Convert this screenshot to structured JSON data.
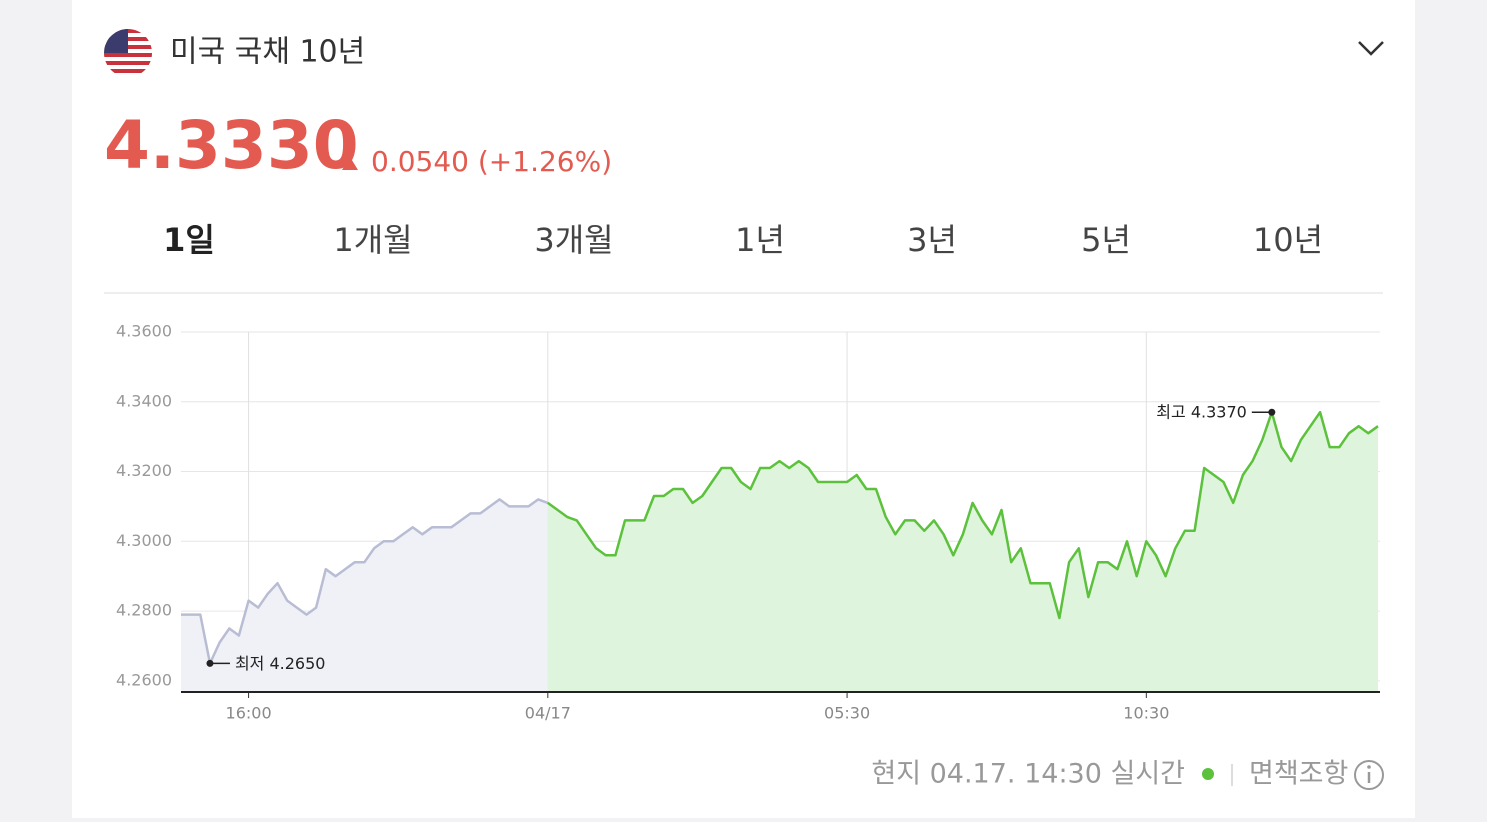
{
  "header": {
    "title": "미국 국채 10년",
    "price": "4.3330",
    "change": "0.0540 (+1.26%)"
  },
  "tabs": {
    "items": [
      "1일",
      "1개월",
      "3개월",
      "1년",
      "3년",
      "5년",
      "10년"
    ],
    "selected": 0
  },
  "chart_data": {
    "type": "line",
    "categories": [
      null,
      null,
      null,
      null,
      null,
      null,
      null,
      "16:00",
      null,
      null,
      null,
      null,
      null,
      null,
      null,
      null,
      null,
      null,
      null,
      null,
      null,
      null,
      null,
      null,
      null,
      null,
      null,
      null,
      null,
      null,
      null,
      null,
      null,
      null,
      null,
      null,
      null,
      null,
      "04/17",
      null,
      null,
      null,
      null,
      null,
      null,
      null,
      null,
      null,
      null,
      null,
      null,
      null,
      null,
      null,
      null,
      null,
      null,
      null,
      null,
      null,
      null,
      null,
      null,
      null,
      null,
      null,
      null,
      null,
      null,
      "05:30",
      null,
      null,
      null,
      null,
      null,
      null,
      null,
      null,
      null,
      null,
      null,
      null,
      null,
      null,
      null,
      null,
      null,
      null,
      null,
      null,
      null,
      null,
      null,
      null,
      null,
      null,
      null,
      null,
      null,
      null,
      "10:30",
      null,
      null,
      null,
      null,
      null,
      null,
      null,
      null,
      null,
      null,
      null,
      null,
      null,
      null,
      null,
      null,
      null,
      null,
      null,
      null,
      null,
      null,
      null,
      null
    ],
    "series": [
      {
        "color": "#b9bdd4",
        "fill": "#f0f1f7",
        "values": [
          4.279,
          4.279,
          4.279,
          4.265,
          4.271,
          4.275,
          4.273,
          4.283,
          4.281,
          4.285,
          4.288,
          4.283,
          4.281,
          4.279,
          4.281,
          4.292,
          4.29,
          4.292,
          4.294,
          4.294,
          4.298,
          4.3,
          4.3,
          4.302,
          4.304,
          4.302,
          4.304,
          4.304,
          4.304,
          4.306,
          4.308,
          4.308,
          4.31,
          4.312,
          4.31,
          4.31,
          4.31,
          4.312,
          4.311,
          null,
          null,
          null,
          null,
          null,
          null,
          null,
          null,
          null,
          null,
          null,
          null,
          null,
          null,
          null,
          null,
          null,
          null,
          null,
          null,
          null,
          null,
          null,
          null,
          null,
          null,
          null,
          null,
          null,
          null,
          null,
          null,
          null,
          null,
          null,
          null,
          null,
          null,
          null,
          null,
          null,
          null,
          null,
          null,
          null,
          null,
          null,
          null,
          null,
          null,
          null,
          null,
          null,
          null,
          null,
          null,
          null,
          null,
          null,
          null,
          null,
          null,
          null,
          null,
          null,
          null,
          null,
          null,
          null,
          null,
          null,
          null,
          null,
          null,
          null,
          null,
          null,
          null,
          null,
          null,
          null,
          null,
          null,
          null,
          null,
          null
        ]
      },
      {
        "color": "#5cc13c",
        "fill": "#dff4dc",
        "values": [
          null,
          null,
          null,
          null,
          null,
          null,
          null,
          null,
          null,
          null,
          null,
          null,
          null,
          null,
          null,
          null,
          null,
          null,
          null,
          null,
          null,
          null,
          null,
          null,
          null,
          null,
          null,
          null,
          null,
          null,
          null,
          null,
          null,
          null,
          null,
          null,
          null,
          null,
          4.311,
          4.309,
          4.307,
          4.306,
          4.302,
          4.298,
          4.296,
          4.296,
          4.306,
          4.306,
          4.306,
          4.313,
          4.313,
          4.315,
          4.315,
          4.311,
          4.313,
          4.317,
          4.321,
          4.321,
          4.317,
          4.315,
          4.321,
          4.321,
          4.323,
          4.321,
          4.323,
          4.321,
          4.317,
          4.317,
          4.317,
          4.317,
          4.319,
          4.315,
          4.315,
          4.307,
          4.302,
          4.306,
          4.306,
          4.303,
          4.306,
          4.302,
          4.296,
          4.302,
          4.311,
          4.306,
          4.302,
          4.309,
          4.294,
          4.298,
          4.288,
          4.288,
          4.288,
          4.278,
          4.294,
          4.298,
          4.284,
          4.294,
          4.294,
          4.292,
          4.3,
          4.29,
          4.3,
          4.296,
          4.29,
          4.298,
          4.303,
          4.303,
          4.321,
          4.319,
          4.317,
          4.311,
          4.319,
          4.323,
          4.329,
          4.337,
          4.327,
          4.323,
          4.329,
          4.333,
          4.337,
          4.327,
          4.327,
          4.331,
          4.333,
          4.331,
          4.333
        ]
      }
    ],
    "ylim": [
      4.2568,
      4.36
    ],
    "yticks": [
      {
        "value": 4.26,
        "label": "4.2600"
      },
      {
        "value": 4.28,
        "label": "4.2800"
      },
      {
        "value": 4.3,
        "label": "4.3000"
      },
      {
        "value": 4.32,
        "label": "4.3200"
      },
      {
        "value": 4.34,
        "label": "4.3400"
      },
      {
        "value": 4.36,
        "label": "4.3600"
      }
    ],
    "grid": true,
    "annotations": [
      {
        "label": "최저 4.2650",
        "value": 4.265
      },
      {
        "label": "최고 4.3370",
        "value": 4.337
      }
    ]
  },
  "footer": {
    "timestamp": "현지 04.17. 14:30 실시간",
    "disclaimer": "면책조항"
  }
}
